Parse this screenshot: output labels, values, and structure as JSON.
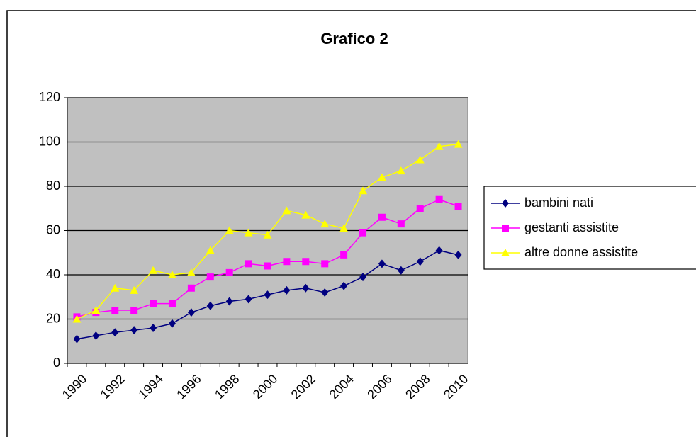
{
  "chart_data": {
    "type": "line",
    "title": "Grafico 2",
    "categories": [
      "1990",
      null,
      "1992",
      null,
      "1994",
      null,
      "1996",
      null,
      "1998",
      null,
      "2000",
      null,
      "2002",
      null,
      "2004",
      null,
      "2006",
      null,
      "2008",
      null,
      "2010"
    ],
    "series": [
      {
        "name": "bambini nati",
        "color": "#000080",
        "marker": "diamond",
        "values": [
          11,
          12.5,
          14,
          15,
          16,
          18,
          23,
          26,
          28,
          29,
          31,
          33,
          34,
          32,
          35,
          39,
          45,
          42,
          46,
          51,
          49
        ]
      },
      {
        "name": "gestanti assistite",
        "color": "#ff00ff",
        "marker": "square",
        "values": [
          21,
          23,
          24,
          24,
          27,
          27,
          34,
          39,
          41,
          45,
          44,
          46,
          46,
          45,
          49,
          59,
          66,
          63,
          70,
          74,
          71
        ]
      },
      {
        "name": "altre donne assistite",
        "color": "#ffff00",
        "marker": "triangle",
        "values": [
          20,
          24,
          34,
          33,
          42,
          40,
          41,
          51,
          60,
          59,
          58,
          69,
          67,
          63,
          61,
          78,
          84,
          87,
          92,
          98,
          99
        ]
      }
    ],
    "ylim": [
      0,
      120
    ],
    "yticks": [
      0,
      20,
      40,
      60,
      80,
      100,
      120
    ],
    "grid": true,
    "legend": "right"
  }
}
